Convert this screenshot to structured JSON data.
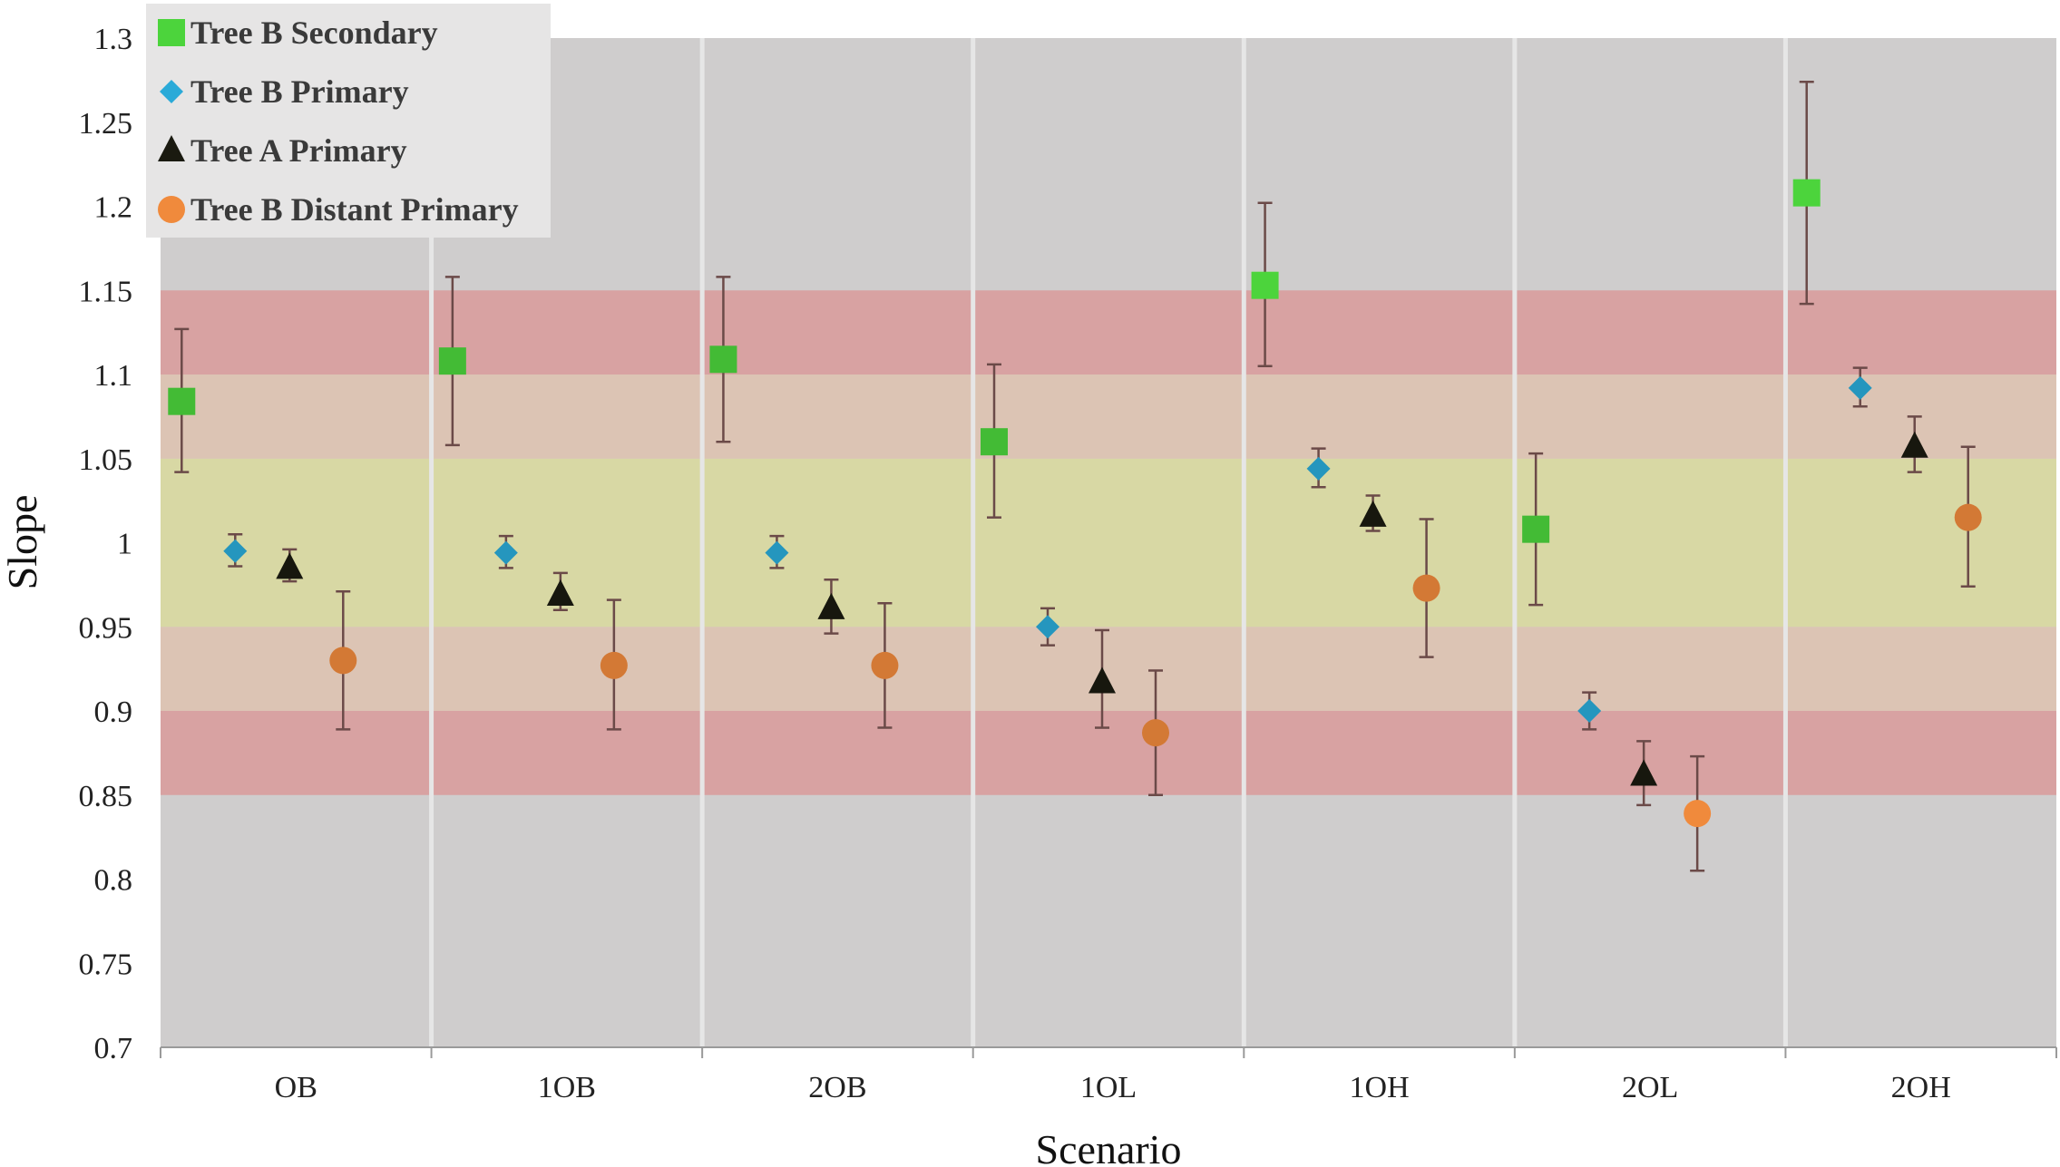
{
  "chart_data": {
    "type": "scatter",
    "title": "",
    "xlabel": "Scenario",
    "ylabel": "Slope",
    "categories": [
      "OB",
      "1OB",
      "2OB",
      "1OL",
      "1OH",
      "2OL",
      "2OH"
    ],
    "ylim": [
      0.7,
      1.3
    ],
    "yticks": [
      "0.7",
      "0.75",
      "0.8",
      "0.85",
      "0.9",
      "0.95",
      "1",
      "1.05",
      "1.1",
      "1.15",
      "1.2",
      "1.25",
      "1.3"
    ],
    "bands": [
      {
        "from": 0.85,
        "to": 0.9,
        "color": "#d8a2a2"
      },
      {
        "from": 0.9,
        "to": 0.95,
        "color": "#dcc4b4"
      },
      {
        "from": 0.95,
        "to": 1.05,
        "color": "#d8d8a4"
      },
      {
        "from": 1.05,
        "to": 1.1,
        "color": "#dcc4b4"
      },
      {
        "from": 1.1,
        "to": 1.15,
        "color": "#d8a2a2"
      }
    ],
    "legend_position": "top-left",
    "series": [
      {
        "name": "Tree B Secondary",
        "marker": "square",
        "color": "#4cd43c",
        "values": [
          1.084,
          1.108,
          1.109,
          1.06,
          1.153,
          1.008,
          1.208
        ],
        "err_low": [
          1.042,
          1.058,
          1.06,
          1.015,
          1.105,
          0.963,
          1.142
        ],
        "err_high": [
          1.127,
          1.158,
          1.158,
          1.106,
          1.202,
          1.053,
          1.274
        ]
      },
      {
        "name": "Tree B Primary",
        "marker": "diamond",
        "color": "#2aaad8",
        "values": [
          0.995,
          0.994,
          0.994,
          0.95,
          1.044,
          0.9,
          1.092
        ],
        "err_low": [
          0.986,
          0.985,
          0.985,
          0.939,
          1.033,
          0.889,
          1.081
        ],
        "err_high": [
          1.005,
          1.004,
          1.004,
          0.961,
          1.056,
          0.911,
          1.104
        ]
      },
      {
        "name": "Tree A Primary",
        "marker": "triangle",
        "color": "#1a1a10",
        "values": [
          0.985,
          0.969,
          0.961,
          0.917,
          1.016,
          0.862,
          1.057
        ],
        "err_low": [
          0.977,
          0.96,
          0.946,
          0.89,
          1.007,
          0.844,
          1.042
        ],
        "err_high": [
          0.996,
          0.982,
          0.978,
          0.948,
          1.028,
          0.882,
          1.075
        ]
      },
      {
        "name": "Tree B Distant Primary",
        "marker": "circle",
        "color": "#f08a3c",
        "values": [
          0.93,
          0.927,
          0.927,
          0.887,
          0.973,
          0.839,
          1.015
        ],
        "err_low": [
          0.889,
          0.889,
          0.89,
          0.85,
          0.932,
          0.805,
          0.974
        ],
        "err_high": [
          0.971,
          0.966,
          0.964,
          0.924,
          1.014,
          0.873,
          1.057
        ]
      }
    ]
  }
}
